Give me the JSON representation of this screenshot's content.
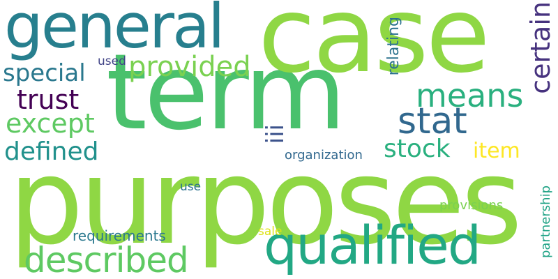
{
  "word_cloud": {
    "background": "#ffffff",
    "words": [
      {
        "id": "purposes",
        "text": "purposes",
        "color": "#8fd744"
      },
      {
        "id": "term",
        "text": "term",
        "color": "#4ac16d"
      },
      {
        "id": "case",
        "text": "case",
        "color": "#8fd744"
      },
      {
        "id": "general",
        "text": "general",
        "color": "#277f8e"
      },
      {
        "id": "qualified",
        "text": "qualified",
        "color": "#22a884"
      },
      {
        "id": "described",
        "text": "described",
        "color": "#5ec962"
      },
      {
        "id": "means",
        "text": "means",
        "color": "#2ab07f"
      },
      {
        "id": "stat",
        "text": "stat",
        "color": "#31688e"
      },
      {
        "id": "provided",
        "text": "provided",
        "color": "#7ad151"
      },
      {
        "id": "special",
        "text": "special",
        "color": "#2a788e"
      },
      {
        "id": "trust",
        "text": "trust",
        "color": "#440154"
      },
      {
        "id": "except",
        "text": "except",
        "color": "#5ec962"
      },
      {
        "id": "defined",
        "text": "defined",
        "color": "#21918c"
      },
      {
        "id": "stock",
        "text": "stock",
        "color": "#2ab07f"
      },
      {
        "id": "item",
        "text": "item",
        "color": "#fde725"
      },
      {
        "id": "certain",
        "text": "certain",
        "color": "#46327e"
      },
      {
        "id": "iii",
        "text": "iii",
        "color": "#3b528b"
      },
      {
        "id": "relating",
        "text": "relating",
        "color": "#2c728e"
      },
      {
        "id": "used",
        "text": "used",
        "color": "#414487"
      },
      {
        "id": "organization",
        "text": "organization",
        "color": "#31688e"
      },
      {
        "id": "use",
        "text": "use",
        "color": "#2c728e"
      },
      {
        "id": "provisions",
        "text": "provisions",
        "color": "#7ad151"
      },
      {
        "id": "requirements",
        "text": "requirements",
        "color": "#2a788e"
      },
      {
        "id": "sale",
        "text": "sale",
        "color": "#dde318"
      },
      {
        "id": "partnership",
        "text": "partnership",
        "color": "#20a386"
      }
    ]
  }
}
